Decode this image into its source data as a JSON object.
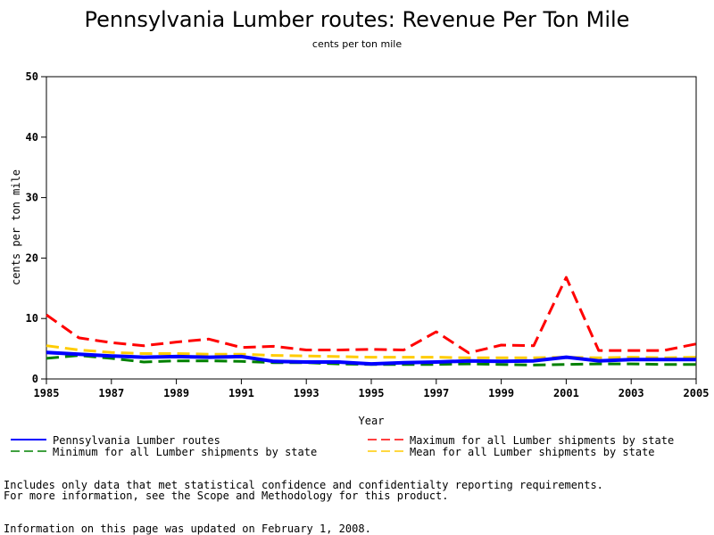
{
  "chart_data": {
    "type": "line",
    "title": "Pennsylvania Lumber routes: Revenue Per Ton Mile",
    "subtitle": "cents per ton mile",
    "xlabel": "Year",
    "ylabel": "cents per ton mile",
    "xlim": [
      1985,
      2005
    ],
    "ylim": [
      0,
      50
    ],
    "xticks": [
      1985,
      1987,
      1989,
      1991,
      1993,
      1995,
      1997,
      1999,
      2001,
      2003,
      2005
    ],
    "yticks": [
      0,
      10,
      20,
      30,
      40,
      50
    ],
    "grid": false,
    "legend_position": "bottom",
    "x": [
      1985,
      1986,
      1987,
      1988,
      1989,
      1990,
      1991,
      1992,
      1993,
      1994,
      1995,
      1996,
      1997,
      1998,
      1999,
      2000,
      2001,
      2002,
      2003,
      2004,
      2005
    ],
    "series": [
      {
        "name": "Pennsylvania Lumber routes",
        "color": "#0000ff",
        "style": "solid",
        "values": [
          4.4,
          4.1,
          3.8,
          3.6,
          3.7,
          3.6,
          3.7,
          2.9,
          2.8,
          2.8,
          2.5,
          2.7,
          2.8,
          3.0,
          2.9,
          3.0,
          3.6,
          3.0,
          3.2,
          3.2,
          3.2
        ]
      },
      {
        "name": "Maximum for all Lumber shipments by state",
        "color": "#ff0000",
        "style": "dashed",
        "values": [
          10.6,
          6.8,
          6.0,
          5.5,
          6.1,
          6.6,
          5.2,
          5.4,
          4.8,
          4.8,
          4.9,
          4.8,
          7.8,
          4.3,
          5.6,
          5.5,
          16.8,
          4.7,
          4.7,
          4.7,
          5.8
        ]
      },
      {
        "name": "Minimum for all Lumber shipments by state",
        "color": "#008000",
        "style": "dashed",
        "values": [
          3.4,
          3.9,
          3.4,
          2.8,
          3.0,
          3.0,
          2.9,
          2.7,
          2.7,
          2.5,
          2.4,
          2.4,
          2.4,
          2.5,
          2.4,
          2.3,
          2.4,
          2.5,
          2.5,
          2.4,
          2.4
        ]
      },
      {
        "name": "Mean for all Lumber shipments by state",
        "color": "#ffcc00",
        "style": "dashed",
        "values": [
          5.5,
          4.8,
          4.4,
          4.2,
          4.2,
          4.1,
          4.1,
          3.9,
          3.8,
          3.7,
          3.6,
          3.6,
          3.6,
          3.5,
          3.5,
          3.5,
          3.6,
          3.5,
          3.6,
          3.5,
          3.6
        ]
      }
    ]
  },
  "notes": {
    "line1": "Includes only data that met statistical confidence and confidentialty reporting requirements.",
    "line2": "For more information, see the Scope and Methodology for this product.",
    "line3": "Information on this page was updated on February 1, 2008."
  }
}
